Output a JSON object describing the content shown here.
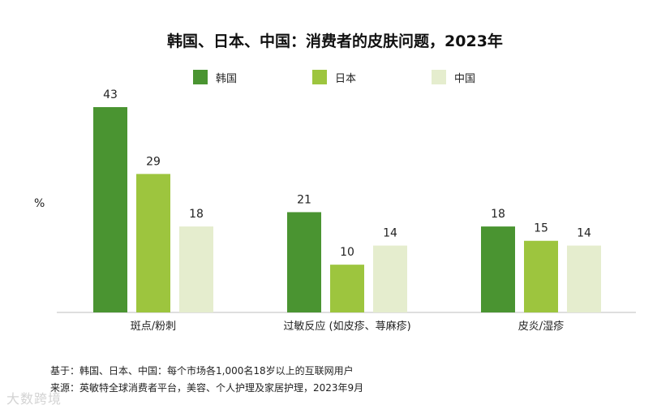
{
  "chart_data": {
    "type": "bar",
    "title": "韩国、日本、中国：消费者的皮肤问题，2023年",
    "ylabel": "%",
    "categories": [
      "斑点/粉刺",
      "过敏反应 (如皮疹、荨麻疹)",
      "皮炎/湿疹"
    ],
    "series": [
      {
        "name": "韩国",
        "values": [
          43,
          21,
          18
        ],
        "color": "#4a9431"
      },
      {
        "name": "日本",
        "values": [
          29,
          10,
          15
        ],
        "color": "#9dc53e"
      },
      {
        "name": "中国",
        "values": [
          18,
          14,
          14
        ],
        "color": "#e5edce"
      }
    ],
    "ylim": [
      0,
      46
    ],
    "legend_position": "top",
    "grid": false
  },
  "footer": {
    "base": "基于：韩国、日本、中国：每个市场各1,000名18岁以上的互联网用户",
    "source": "来源：英敏特全球消费者平台，美容、个人护理及家居护理，2023年9月"
  },
  "watermark": "大数跨境"
}
